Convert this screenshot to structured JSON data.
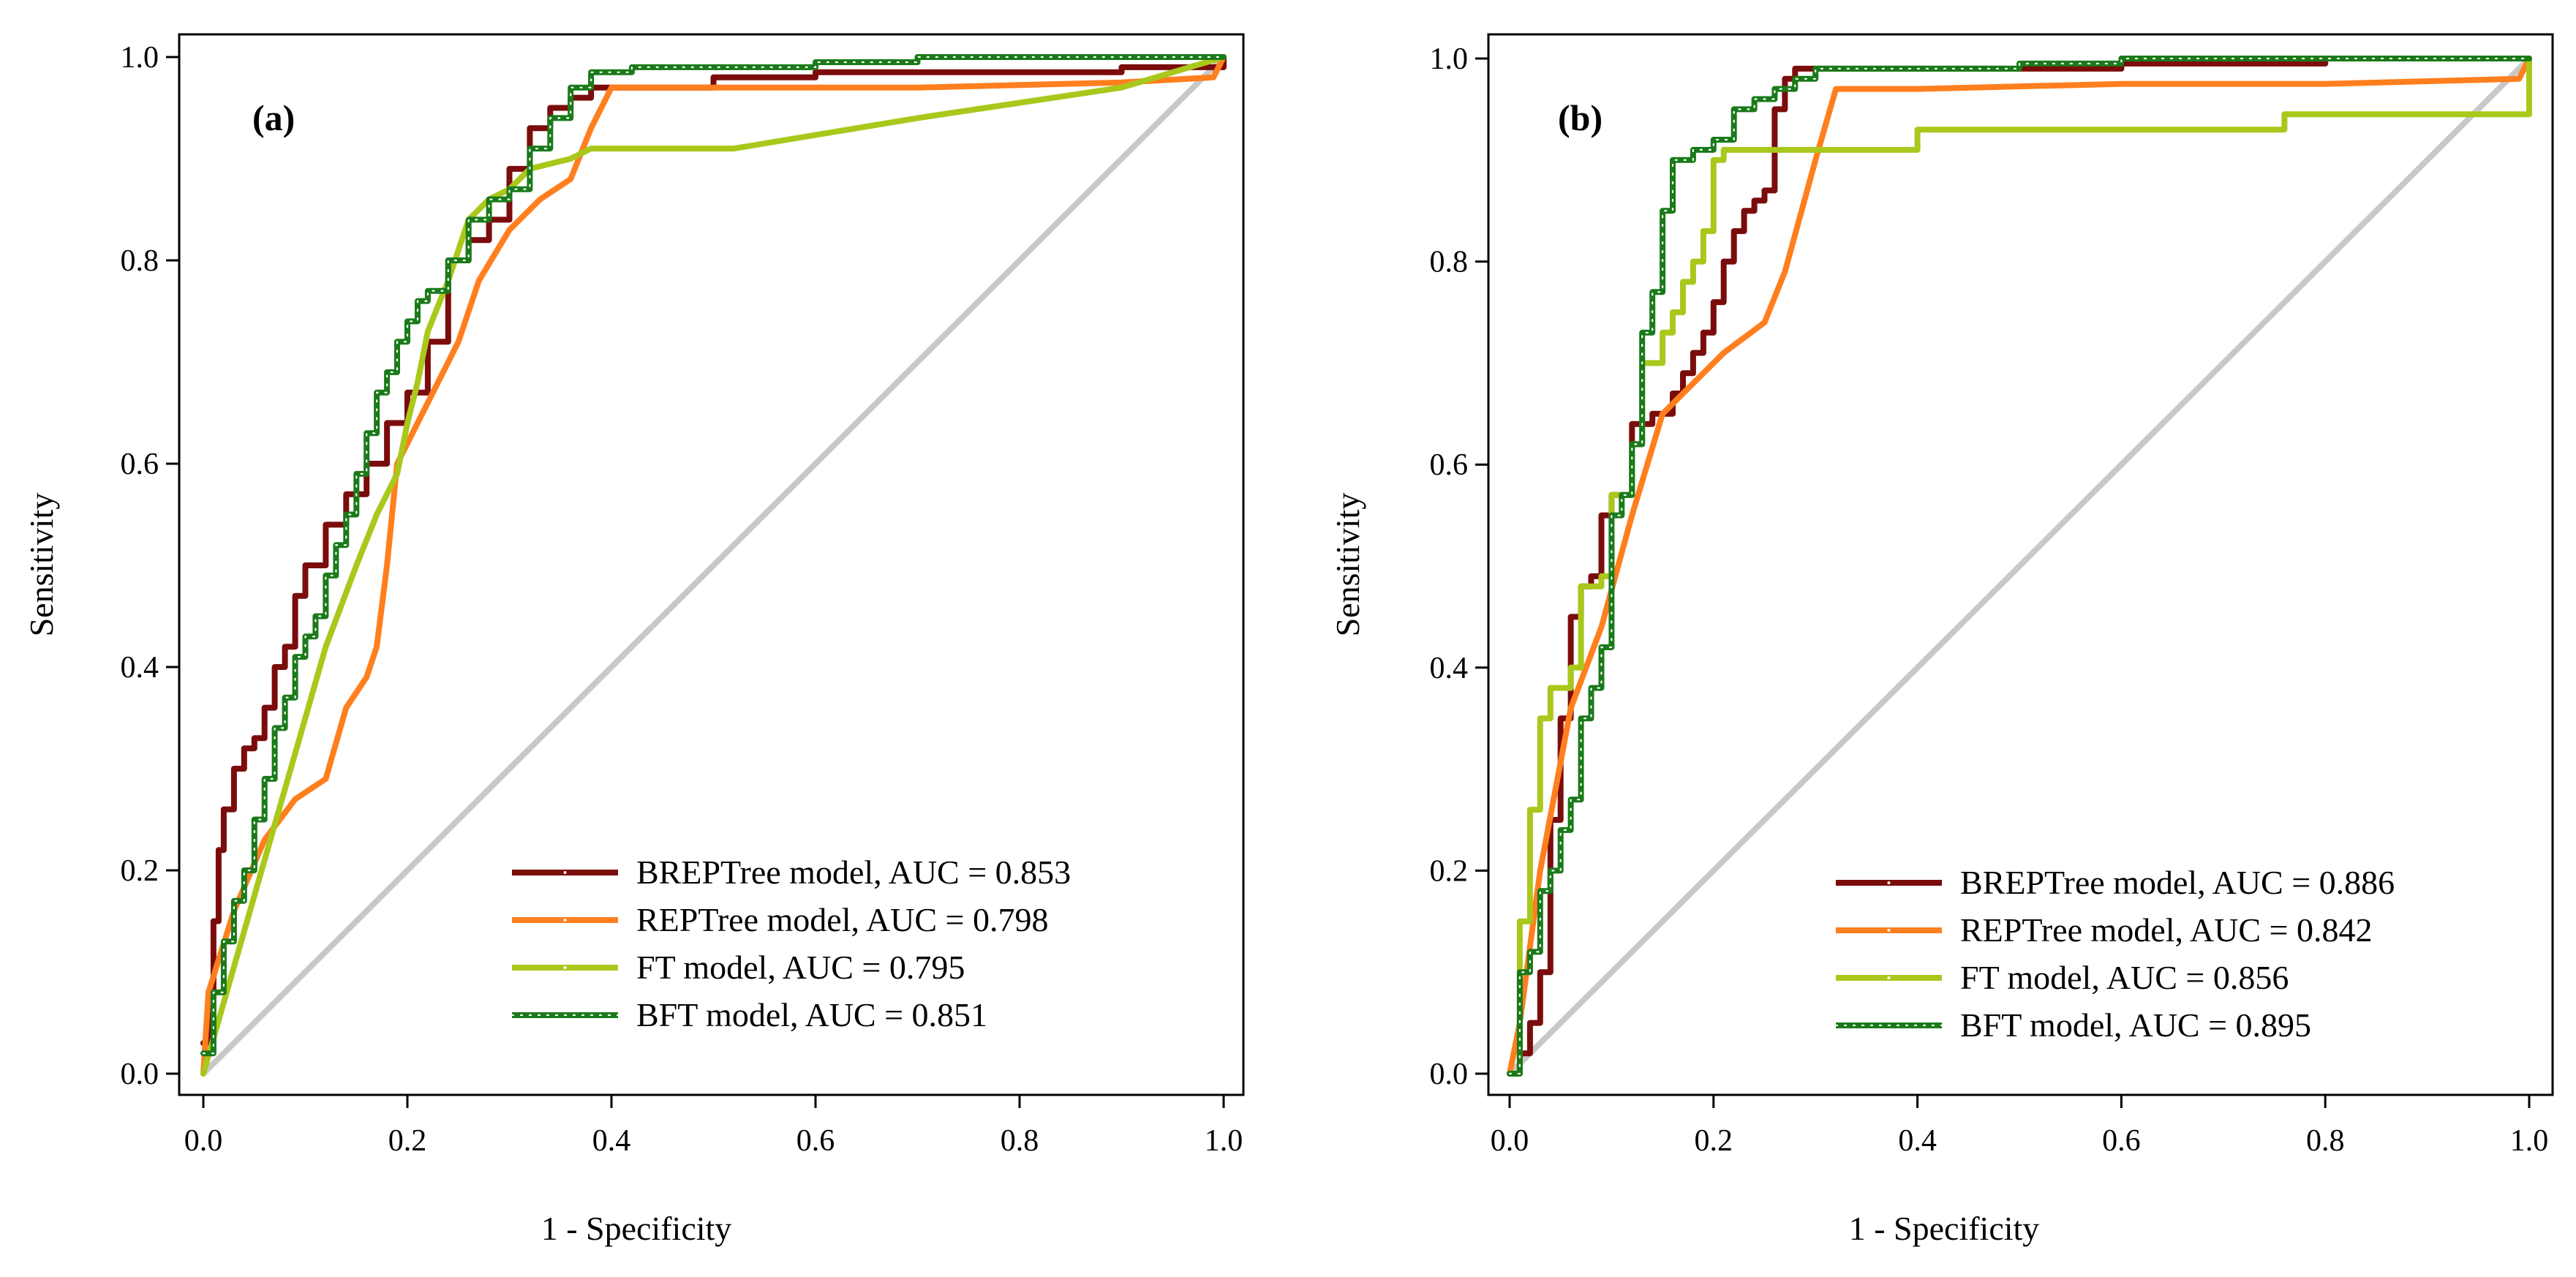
{
  "chart_data": [
    {
      "type": "line",
      "panel_label": "(a)",
      "xlabel": "1 - Specificity",
      "ylabel": "Sensitivity",
      "xlim": [
        0,
        1
      ],
      "ylim": [
        0,
        1
      ],
      "xticks": [
        "0.0",
        "0.2",
        "0.4",
        "0.6",
        "0.8",
        "1.0"
      ],
      "yticks": [
        "0.0",
        "0.2",
        "0.4",
        "0.6",
        "0.8",
        "1.0"
      ],
      "legend_position": "bottom-right",
      "series": [
        {
          "name": "BREPTree model",
          "legend": "BREPTree model, AUC = 0.853",
          "auc": 0.853,
          "color": "#7b0c0c",
          "style": "step",
          "x": [
            0.0,
            0.005,
            0.01,
            0.015,
            0.02,
            0.03,
            0.04,
            0.05,
            0.06,
            0.07,
            0.08,
            0.09,
            0.1,
            0.12,
            0.14,
            0.16,
            0.18,
            0.2,
            0.22,
            0.24,
            0.26,
            0.28,
            0.3,
            0.32,
            0.34,
            0.36,
            0.38,
            0.4,
            0.5,
            0.6,
            0.8,
            0.9,
            1.0
          ],
          "y": [
            0.03,
            0.08,
            0.15,
            0.22,
            0.26,
            0.3,
            0.32,
            0.33,
            0.36,
            0.4,
            0.42,
            0.47,
            0.5,
            0.54,
            0.57,
            0.6,
            0.64,
            0.67,
            0.72,
            0.8,
            0.82,
            0.84,
            0.89,
            0.93,
            0.95,
            0.96,
            0.97,
            0.97,
            0.98,
            0.985,
            0.985,
            0.99,
            1.0
          ]
        },
        {
          "name": "REPTree model",
          "legend": "REPTree model, AUC = 0.798",
          "auc": 0.798,
          "color": "#ff7f1e",
          "style": "line",
          "x": [
            0.0,
            0.005,
            0.03,
            0.06,
            0.09,
            0.12,
            0.14,
            0.16,
            0.17,
            0.18,
            0.19,
            0.2,
            0.22,
            0.25,
            0.27,
            0.3,
            0.33,
            0.36,
            0.38,
            0.4,
            0.5,
            0.7,
            0.9,
            0.99,
            1.0
          ],
          "y": [
            0.0,
            0.08,
            0.16,
            0.23,
            0.27,
            0.29,
            0.36,
            0.39,
            0.42,
            0.5,
            0.6,
            0.62,
            0.66,
            0.72,
            0.78,
            0.83,
            0.86,
            0.88,
            0.93,
            0.97,
            0.97,
            0.97,
            0.975,
            0.98,
            1.0
          ]
        },
        {
          "name": "FT model",
          "legend": "FT model, AUC = 0.795",
          "auc": 0.795,
          "color": "#a9c81c",
          "style": "line",
          "x": [
            0.0,
            0.04,
            0.08,
            0.12,
            0.15,
            0.17,
            0.19,
            0.2,
            0.21,
            0.22,
            0.24,
            0.26,
            0.28,
            0.3,
            0.32,
            0.36,
            0.38,
            0.52,
            0.7,
            0.9,
            1.0
          ],
          "y": [
            0.0,
            0.14,
            0.28,
            0.42,
            0.5,
            0.55,
            0.59,
            0.64,
            0.68,
            0.73,
            0.78,
            0.84,
            0.86,
            0.87,
            0.89,
            0.9,
            0.91,
            0.91,
            0.94,
            0.97,
            1.0
          ]
        },
        {
          "name": "BFT model",
          "legend": "BFT model, AUC = 0.851",
          "auc": 0.851,
          "color": "#1a7a1a",
          "style": "step-dotted",
          "x": [
            0.0,
            0.01,
            0.02,
            0.03,
            0.04,
            0.05,
            0.06,
            0.07,
            0.08,
            0.09,
            0.1,
            0.11,
            0.12,
            0.13,
            0.14,
            0.15,
            0.16,
            0.17,
            0.18,
            0.19,
            0.2,
            0.21,
            0.22,
            0.24,
            0.26,
            0.28,
            0.3,
            0.32,
            0.34,
            0.36,
            0.38,
            0.42,
            0.5,
            0.6,
            0.7,
            0.85,
            1.0
          ],
          "y": [
            0.02,
            0.08,
            0.13,
            0.17,
            0.2,
            0.25,
            0.29,
            0.34,
            0.37,
            0.41,
            0.43,
            0.45,
            0.49,
            0.52,
            0.55,
            0.59,
            0.63,
            0.67,
            0.69,
            0.72,
            0.74,
            0.76,
            0.77,
            0.8,
            0.84,
            0.86,
            0.87,
            0.91,
            0.94,
            0.97,
            0.985,
            0.99,
            0.99,
            0.995,
            1.0,
            1.0,
            1.0
          ]
        }
      ],
      "reference_line": {
        "color": "#c8c8c8",
        "x": [
          0,
          1
        ],
        "y": [
          0,
          1
        ]
      }
    },
    {
      "type": "line",
      "panel_label": "(b)",
      "xlabel": "1 - Specificity",
      "ylabel": "Sensitivity",
      "xlim": [
        0,
        1
      ],
      "ylim": [
        0,
        1
      ],
      "xticks": [
        "0.0",
        "0.2",
        "0.4",
        "0.6",
        "0.8",
        "1.0"
      ],
      "yticks": [
        "0.0",
        "0.2",
        "0.4",
        "0.6",
        "0.8",
        "1.0"
      ],
      "legend_position": "bottom-right",
      "series": [
        {
          "name": "BREPTree model",
          "legend": "BREPTree model, AUC = 0.886",
          "auc": 0.886,
          "color": "#7b0c0c",
          "style": "step",
          "x": [
            0.0,
            0.01,
            0.02,
            0.03,
            0.04,
            0.05,
            0.06,
            0.07,
            0.08,
            0.09,
            0.1,
            0.12,
            0.14,
            0.16,
            0.17,
            0.18,
            0.19,
            0.2,
            0.21,
            0.22,
            0.23,
            0.24,
            0.25,
            0.26,
            0.27,
            0.28,
            0.3,
            0.4,
            0.5,
            0.6,
            0.8,
            1.0
          ],
          "y": [
            0.0,
            0.02,
            0.05,
            0.1,
            0.25,
            0.35,
            0.45,
            0.48,
            0.49,
            0.55,
            0.57,
            0.64,
            0.65,
            0.67,
            0.69,
            0.71,
            0.73,
            0.76,
            0.8,
            0.83,
            0.85,
            0.86,
            0.87,
            0.95,
            0.98,
            0.99,
            0.99,
            0.99,
            0.99,
            0.995,
            1.0,
            1.0
          ]
        },
        {
          "name": "REPTree model",
          "legend": "REPTree model, AUC = 0.842",
          "auc": 0.842,
          "color": "#ff7f1e",
          "style": "line",
          "x": [
            0.0,
            0.01,
            0.03,
            0.06,
            0.09,
            0.12,
            0.15,
            0.18,
            0.21,
            0.25,
            0.27,
            0.3,
            0.32,
            0.4,
            0.6,
            0.8,
            0.99,
            1.0
          ],
          "y": [
            0.0,
            0.05,
            0.2,
            0.36,
            0.44,
            0.55,
            0.65,
            0.68,
            0.71,
            0.74,
            0.79,
            0.9,
            0.97,
            0.97,
            0.975,
            0.975,
            0.98,
            1.0
          ]
        },
        {
          "name": "FT model",
          "legend": "FT model, AUC = 0.856",
          "auc": 0.856,
          "color": "#a9c81c",
          "style": "step",
          "x": [
            0.0,
            0.01,
            0.02,
            0.03,
            0.04,
            0.06,
            0.07,
            0.09,
            0.1,
            0.12,
            0.13,
            0.15,
            0.16,
            0.17,
            0.18,
            0.19,
            0.2,
            0.21,
            0.35,
            0.4,
            0.7,
            0.76,
            0.9,
            1.0
          ],
          "y": [
            0.0,
            0.15,
            0.26,
            0.35,
            0.38,
            0.4,
            0.48,
            0.49,
            0.57,
            0.62,
            0.7,
            0.73,
            0.75,
            0.78,
            0.8,
            0.83,
            0.9,
            0.91,
            0.91,
            0.93,
            0.93,
            0.945,
            0.945,
            1.0
          ]
        },
        {
          "name": "BFT model",
          "legend": "BFT model, AUC = 0.895",
          "auc": 0.895,
          "color": "#1a7a1a",
          "style": "step-dotted",
          "x": [
            0.0,
            0.01,
            0.02,
            0.03,
            0.04,
            0.05,
            0.06,
            0.07,
            0.08,
            0.09,
            0.1,
            0.11,
            0.12,
            0.13,
            0.14,
            0.15,
            0.16,
            0.18,
            0.2,
            0.22,
            0.24,
            0.26,
            0.28,
            0.3,
            0.4,
            0.5,
            0.6,
            0.8,
            1.0
          ],
          "y": [
            0.0,
            0.1,
            0.12,
            0.18,
            0.2,
            0.24,
            0.27,
            0.35,
            0.38,
            0.42,
            0.55,
            0.57,
            0.62,
            0.73,
            0.77,
            0.85,
            0.9,
            0.91,
            0.92,
            0.95,
            0.96,
            0.97,
            0.98,
            0.99,
            0.99,
            0.995,
            1.0,
            1.0,
            1.0
          ]
        }
      ],
      "reference_line": {
        "color": "#c8c8c8",
        "x": [
          0,
          1
        ],
        "y": [
          0,
          1
        ]
      }
    }
  ]
}
